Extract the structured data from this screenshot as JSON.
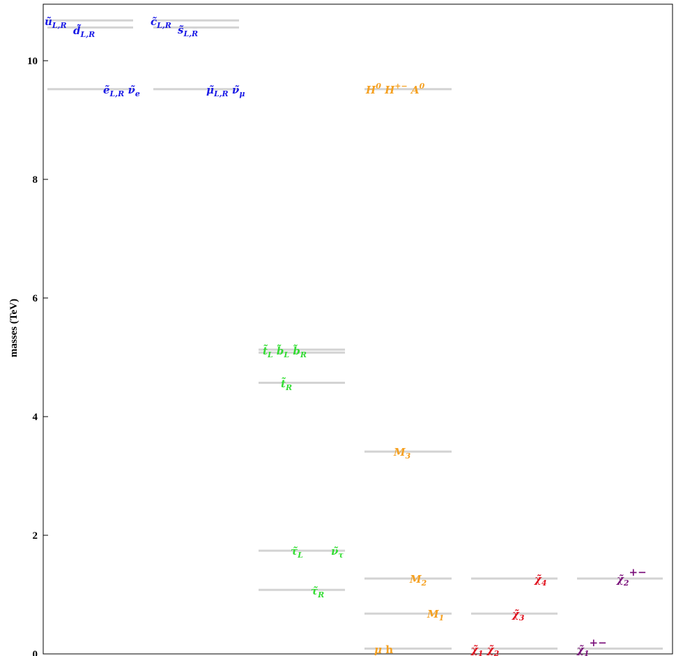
{
  "chart_data": {
    "type": "level-diagram",
    "ylabel": "masses (TeV)",
    "ylim": [
      0,
      11
    ],
    "yticks": [
      "0",
      "2",
      "4",
      "6",
      "8",
      "10"
    ],
    "colors": {
      "squark_slepton": "#1a1ae6",
      "third_gen": "#33dd33",
      "higgs_gaugino": "#f5a020",
      "neutralino": "#e0121e",
      "chargino": "#7a107a",
      "level_line": "#d3d3d3"
    },
    "columns": [
      {
        "id": "col1",
        "levels": [
          {
            "mass": 10.68,
            "label": "ũL,R",
            "label_text": "ũ",
            "sub": "L,R",
            "group": "squark_slepton"
          },
          {
            "mass": 10.56,
            "label": "d̃L,R",
            "label_text": "d̃",
            "sub": "L,R",
            "group": "squark_slepton"
          },
          {
            "mass": 9.52,
            "label": "ẽL,R ν̃e",
            "group": "squark_slepton"
          }
        ]
      },
      {
        "id": "col2",
        "levels": [
          {
            "mass": 10.68,
            "label": "c̃L,R",
            "group": "squark_slepton"
          },
          {
            "mass": 10.56,
            "label": "s̃L,R",
            "group": "squark_slepton"
          },
          {
            "mass": 9.52,
            "label": "μ̃L,R ν̃μ",
            "group": "squark_slepton"
          }
        ]
      },
      {
        "id": "col3",
        "levels": [
          {
            "mass": 5.13,
            "label": "t̃L b̃L b̃R",
            "group": "third_gen"
          },
          {
            "mass": 5.08,
            "label": "",
            "group": "third_gen"
          },
          {
            "mass": 4.57,
            "label": "t̃R",
            "group": "third_gen"
          },
          {
            "mass": 1.74,
            "label": "τ̃L ν̃τ",
            "group": "third_gen"
          },
          {
            "mass": 1.08,
            "label": "τ̃R",
            "group": "third_gen"
          }
        ]
      },
      {
        "id": "col4",
        "levels": [
          {
            "mass": 9.52,
            "label": "H0 H+− A0",
            "group": "higgs_gaugino"
          },
          {
            "mass": 3.41,
            "label": "M3",
            "group": "higgs_gaugino"
          },
          {
            "mass": 1.27,
            "label": "M2",
            "group": "higgs_gaugino"
          },
          {
            "mass": 0.68,
            "label": "M1",
            "group": "higgs_gaugino"
          },
          {
            "mass": 0.09,
            "label": "μ h",
            "group": "higgs_gaugino"
          }
        ]
      },
      {
        "id": "col5",
        "levels": [
          {
            "mass": 1.27,
            "label": "χ̃4",
            "group": "neutralino"
          },
          {
            "mass": 0.68,
            "label": "χ̃3",
            "group": "neutralino"
          },
          {
            "mass": 0.09,
            "label": "χ̃1 χ̃2",
            "group": "neutralino"
          }
        ]
      },
      {
        "id": "col6",
        "levels": [
          {
            "mass": 1.27,
            "label": "χ̃2+−",
            "group": "chargino"
          },
          {
            "mass": 0.09,
            "label": "χ̃1+−",
            "group": "chargino"
          }
        ]
      }
    ]
  }
}
